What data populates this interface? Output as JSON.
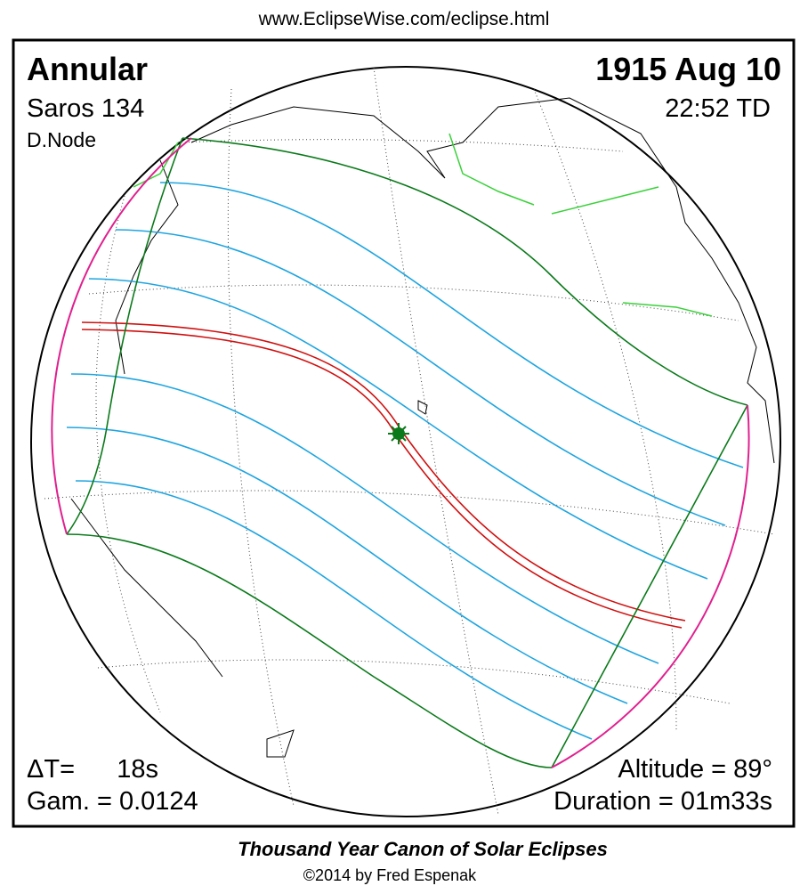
{
  "header": {
    "url": "www.EclipseWise.com/eclipse.html"
  },
  "map": {
    "eclipse_type": "Annular",
    "date": "1915 Aug 10",
    "saros": "Saros 134",
    "time": "22:52 TD",
    "node": "D.Node",
    "delta_t_label": "ΔT=",
    "delta_t_value": "18s",
    "gamma": "Gam. = 0.0124",
    "altitude": "Altitude = 89°",
    "duration": "Duration = 01m33s"
  },
  "footer": {
    "title": "Thousand Year Canon of Solar Eclipses",
    "credit": "©2014 by Fred Espenak"
  }
}
